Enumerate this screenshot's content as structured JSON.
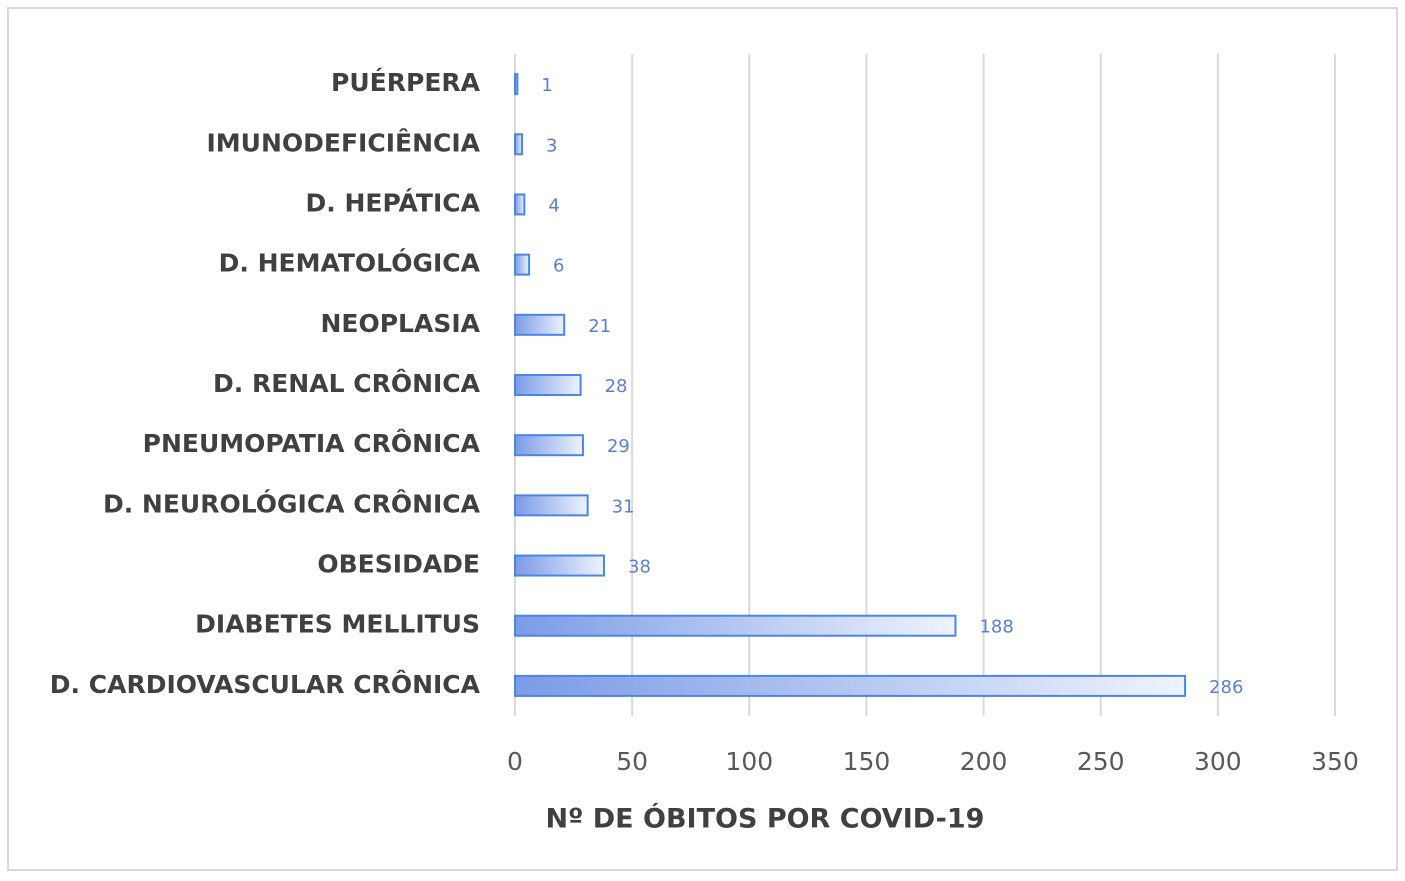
{
  "chart_data": {
    "type": "bar",
    "orientation": "horizontal",
    "x_label": "Nº DE ÓBITOS POR COVID-19",
    "categories": [
      "PUÉRPERA",
      "IMUNODEFICIÊNCIA",
      "D. HEPÁTICA",
      "D. HEMATOLÓGICA",
      "NEOPLASIA",
      "D. RENAL CRÔNICA",
      "PNEUMOPATIA CRÔNICA",
      "D. NEUROLÓGICA CRÔNICA",
      "OBESIDADE",
      "DIABETES MELLITUS",
      "D. CARDIOVASCULAR CRÔNICA"
    ],
    "values": [
      1,
      3,
      4,
      6,
      21,
      28,
      29,
      31,
      38,
      188,
      286
    ],
    "color": "#4a86e8",
    "xlim": [
      0,
      350
    ],
    "xticks": [
      0,
      50,
      100,
      150,
      200,
      250,
      300,
      350
    ],
    "grid": true
  }
}
